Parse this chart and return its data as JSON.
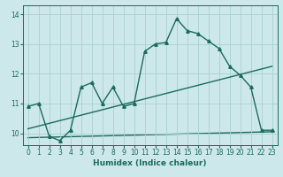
{
  "title": "",
  "xlabel": "Humidex (Indice chaleur)",
  "bg_color": "#cce8ea",
  "grid_color": "#aacfd2",
  "line_color": "#1a6b5a",
  "xlim": [
    -0.5,
    23.5
  ],
  "ylim": [
    9.6,
    14.3
  ],
  "yticks": [
    10,
    11,
    12,
    13,
    14
  ],
  "xticks": [
    0,
    1,
    2,
    3,
    4,
    5,
    6,
    7,
    8,
    9,
    10,
    11,
    12,
    13,
    14,
    15,
    16,
    17,
    18,
    19,
    20,
    21,
    22,
    23
  ],
  "curve1_x": [
    0,
    1,
    2,
    3,
    4,
    5,
    6,
    7,
    8,
    9,
    10,
    11,
    12,
    13,
    14,
    15,
    16,
    17,
    18,
    19,
    20,
    21,
    22,
    23
  ],
  "curve1_y": [
    10.9,
    11.0,
    9.9,
    9.75,
    10.1,
    11.55,
    11.7,
    11.0,
    11.55,
    10.9,
    11.0,
    12.75,
    13.0,
    13.05,
    13.85,
    13.45,
    13.35,
    13.1,
    12.85,
    12.25,
    11.95,
    11.55,
    10.1,
    10.1
  ],
  "curve2_x": [
    0,
    23
  ],
  "curve2_y": [
    10.15,
    12.25
  ],
  "curve3_x": [
    0,
    23
  ],
  "curve3_y": [
    9.85,
    10.05
  ],
  "marker": "^",
  "markersize": 2.5,
  "linewidth": 1.0
}
